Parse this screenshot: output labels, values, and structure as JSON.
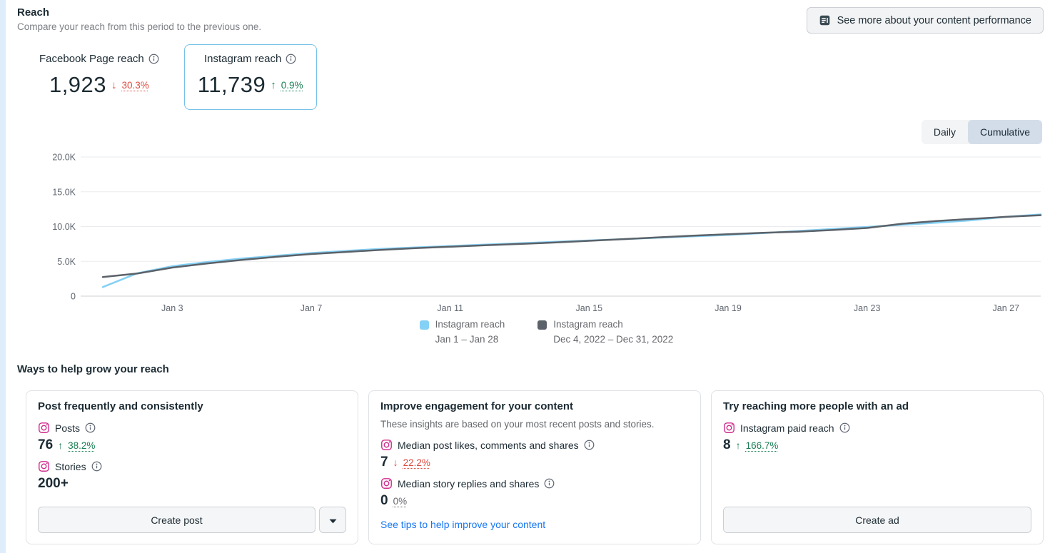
{
  "header": {
    "title": "Reach",
    "subtitle": "Compare your reach from this period to the previous one.",
    "see_more_button": "See more about your content performance"
  },
  "metric_cards": [
    {
      "label": "Facebook Page reach",
      "value": "1,923",
      "trend": "down",
      "arrow": "↓",
      "delta": "30.3%",
      "selected": false
    },
    {
      "label": "Instagram reach",
      "value": "11,739",
      "trend": "up",
      "arrow": "↑",
      "delta": "0.9%",
      "selected": true
    }
  ],
  "view_toggle": {
    "options": [
      "Daily",
      "Cumulative"
    ],
    "selected": "Cumulative"
  },
  "chart_data": {
    "type": "line",
    "title": "Instagram reach, cumulative, this period vs previous",
    "x_unit": "day of period (28 days)",
    "xtick_days": [
      3,
      7,
      11,
      15,
      19,
      23,
      27
    ],
    "xtick_labels": [
      "Jan 3",
      "Jan 7",
      "Jan 11",
      "Jan 15",
      "Jan 19",
      "Jan 23",
      "Jan 27"
    ],
    "ytick_values": [
      0,
      5000,
      10000,
      15000,
      20000
    ],
    "ytick_labels": [
      "0",
      "5.0K",
      "10.0K",
      "15.0K",
      "20.0K"
    ],
    "ylim": [
      0,
      20000
    ],
    "grid": true,
    "legend_position": "bottom-center",
    "series": [
      {
        "name": "Instagram reach",
        "period": "Jan 1 – Jan 28",
        "color": "#85d0f5",
        "values": [
          1300,
          3300,
          4300,
          4900,
          5400,
          5800,
          6200,
          6500,
          6800,
          7000,
          7200,
          7400,
          7600,
          7800,
          8000,
          8200,
          8400,
          8600,
          8800,
          9050,
          9350,
          9650,
          9950,
          10250,
          10550,
          10900,
          11400,
          11739
        ]
      },
      {
        "name": "Instagram reach",
        "period": "Dec 4, 2022 – Dec 31, 2022",
        "color": "#5b6269",
        "values": [
          2750,
          3250,
          4100,
          4700,
          5200,
          5650,
          6050,
          6350,
          6650,
          6900,
          7100,
          7300,
          7500,
          7700,
          7950,
          8200,
          8450,
          8700,
          8900,
          9100,
          9250,
          9500,
          9800,
          10400,
          10800,
          11100,
          11400,
          11634
        ]
      }
    ]
  },
  "grow_section": {
    "title": "Ways to help grow your reach",
    "cards": [
      {
        "title": "Post frequently and consistently",
        "metrics": [
          {
            "icon": "instagram-icon",
            "label": "Posts",
            "value": "76",
            "trend": "up",
            "arrow": "↑",
            "delta": "38.2%"
          },
          {
            "icon": "instagram-icon",
            "label": "Stories",
            "value": "200+",
            "trend": "none",
            "arrow": "",
            "delta": ""
          }
        ],
        "primary_button": "Create post"
      },
      {
        "title": "Improve engagement for your content",
        "description": "These insights are based on your most recent posts and stories.",
        "metrics": [
          {
            "icon": "instagram-icon",
            "label": "Median post likes, comments and shares",
            "value": "7",
            "trend": "down",
            "arrow": "↓",
            "delta": "22.2%"
          },
          {
            "icon": "instagram-icon",
            "label": "Median story replies and shares",
            "value": "0",
            "trend": "flat",
            "arrow": "",
            "delta": "0%"
          }
        ],
        "link": "See tips to help improve your content"
      },
      {
        "title": "Try reaching more people with an ad",
        "metrics": [
          {
            "icon": "instagram-icon",
            "label": "Instagram paid reach",
            "value": "8",
            "trend": "up",
            "arrow": "↑",
            "delta": "166.7%"
          }
        ],
        "primary_button": "Create ad"
      }
    ]
  },
  "colors": {
    "accent_link": "#1877f2",
    "positive": "#1b7e54",
    "negative": "#dc4b3e",
    "selected_card_border": "#77c1e8",
    "instagram_pink": "#cf2e8d",
    "current_series": "#85d0f5",
    "previous_series": "#5b6269"
  }
}
